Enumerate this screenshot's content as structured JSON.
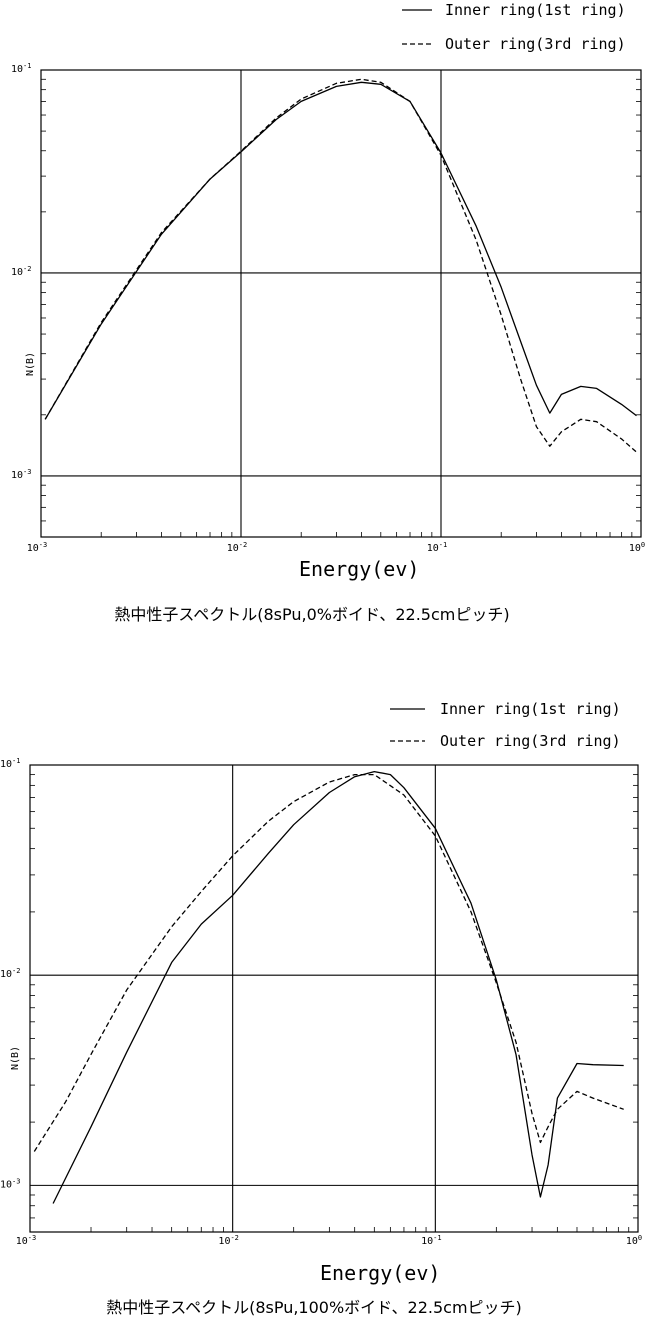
{
  "chart_data": [
    {
      "type": "line",
      "title": "熱中性子スペクトル(8sPu,0%ボイド、22.5cmピッチ)",
      "xlabel": "Energy(ev)",
      "ylabel": "N(B)",
      "xscale": "log",
      "yscale": "log",
      "xlim": [
        0.001,
        1.0
      ],
      "ylim": [
        0.0005,
        0.1
      ],
      "x_ticks": [
        {
          "value": 0.001,
          "base": "10",
          "exp": "-3"
        },
        {
          "value": 0.01,
          "base": "10",
          "exp": "-2"
        },
        {
          "value": 0.1,
          "base": "10",
          "exp": "-1"
        },
        {
          "value": 1.0,
          "base": "10",
          "exp": "0"
        }
      ],
      "y_ticks": [
        {
          "value": 0.001,
          "base": "10",
          "exp": "-3"
        },
        {
          "value": 0.01,
          "base": "10",
          "exp": "-2"
        },
        {
          "value": 0.1,
          "base": "10",
          "exp": "-1"
        }
      ],
      "grid": "decades",
      "legend_position": "top-right",
      "series": [
        {
          "name": "Inner ring(1st ring)",
          "style": "solid",
          "x": [
            0.00105,
            0.002,
            0.004,
            0.007,
            0.01,
            0.015,
            0.02,
            0.03,
            0.04,
            0.05,
            0.07,
            0.1,
            0.15,
            0.2,
            0.25,
            0.3,
            0.35,
            0.4,
            0.5,
            0.6,
            0.8,
            0.95
          ],
          "y": [
            0.0019,
            0.0056,
            0.0155,
            0.029,
            0.0395,
            0.057,
            0.07,
            0.083,
            0.087,
            0.085,
            0.07,
            0.039,
            0.017,
            0.0085,
            0.0046,
            0.0028,
            0.00204,
            0.00252,
            0.00276,
            0.0027,
            0.00225,
            0.00198
          ]
        },
        {
          "name": "Outer ring(3rd ring)",
          "style": "dashed",
          "x": [
            0.00105,
            0.002,
            0.004,
            0.007,
            0.01,
            0.015,
            0.02,
            0.03,
            0.04,
            0.05,
            0.07,
            0.1,
            0.15,
            0.2,
            0.25,
            0.3,
            0.35,
            0.4,
            0.5,
            0.6,
            0.8,
            0.95
          ],
          "y": [
            0.0019,
            0.0057,
            0.0158,
            0.029,
            0.0398,
            0.058,
            0.072,
            0.086,
            0.09,
            0.087,
            0.07,
            0.038,
            0.0145,
            0.0062,
            0.003,
            0.00175,
            0.0014,
            0.00165,
            0.0019,
            0.00185,
            0.00152,
            0.00131
          ]
        }
      ]
    },
    {
      "type": "line",
      "title": "熱中性子スペクトル(8sPu,100%ボイド、22.5cmピッチ)",
      "xlabel": "Energy(ev)",
      "ylabel": "N(B)",
      "xscale": "log",
      "yscale": "log",
      "xlim": [
        0.001,
        1.0
      ],
      "ylim": [
        0.0006,
        0.1
      ],
      "x_ticks": [
        {
          "value": 0.001,
          "base": "10",
          "exp": "-3"
        },
        {
          "value": 0.01,
          "base": "10",
          "exp": "-2"
        },
        {
          "value": 0.1,
          "base": "10",
          "exp": "-1"
        },
        {
          "value": 1.0,
          "base": "10",
          "exp": "0"
        }
      ],
      "y_ticks": [
        {
          "value": 0.001,
          "base": "10",
          "exp": "-3"
        },
        {
          "value": 0.01,
          "base": "10",
          "exp": "-2"
        },
        {
          "value": 0.1,
          "base": "10",
          "exp": "-1"
        }
      ],
      "grid": "decades",
      "legend_position": "top-right",
      "series": [
        {
          "name": "Inner ring(1st ring)",
          "style": "solid",
          "x": [
            0.0013,
            0.002,
            0.003,
            0.005,
            0.007,
            0.01,
            0.015,
            0.02,
            0.03,
            0.04,
            0.05,
            0.06,
            0.07,
            0.1,
            0.15,
            0.2,
            0.25,
            0.3,
            0.33,
            0.36,
            0.4,
            0.5,
            0.6,
            0.85
          ],
          "y": [
            0.00082,
            0.0019,
            0.0043,
            0.0115,
            0.0175,
            0.024,
            0.038,
            0.052,
            0.074,
            0.088,
            0.093,
            0.09,
            0.078,
            0.05,
            0.022,
            0.0095,
            0.0042,
            0.0014,
            0.00088,
            0.00125,
            0.0026,
            0.0038,
            0.00375,
            0.00372
          ]
        },
        {
          "name": "Outer ring(3rd ring)",
          "style": "dashed",
          "x": [
            0.00105,
            0.0015,
            0.002,
            0.003,
            0.005,
            0.007,
            0.01,
            0.015,
            0.02,
            0.03,
            0.04,
            0.05,
            0.07,
            0.1,
            0.15,
            0.2,
            0.25,
            0.3,
            0.33,
            0.36,
            0.4,
            0.5,
            0.6,
            0.85
          ],
          "y": [
            0.00145,
            0.0025,
            0.0042,
            0.0085,
            0.017,
            0.025,
            0.037,
            0.054,
            0.067,
            0.083,
            0.09,
            0.09,
            0.072,
            0.046,
            0.02,
            0.0092,
            0.0048,
            0.0022,
            0.0016,
            0.0019,
            0.0023,
            0.0028,
            0.0026,
            0.0023
          ]
        }
      ]
    }
  ]
}
